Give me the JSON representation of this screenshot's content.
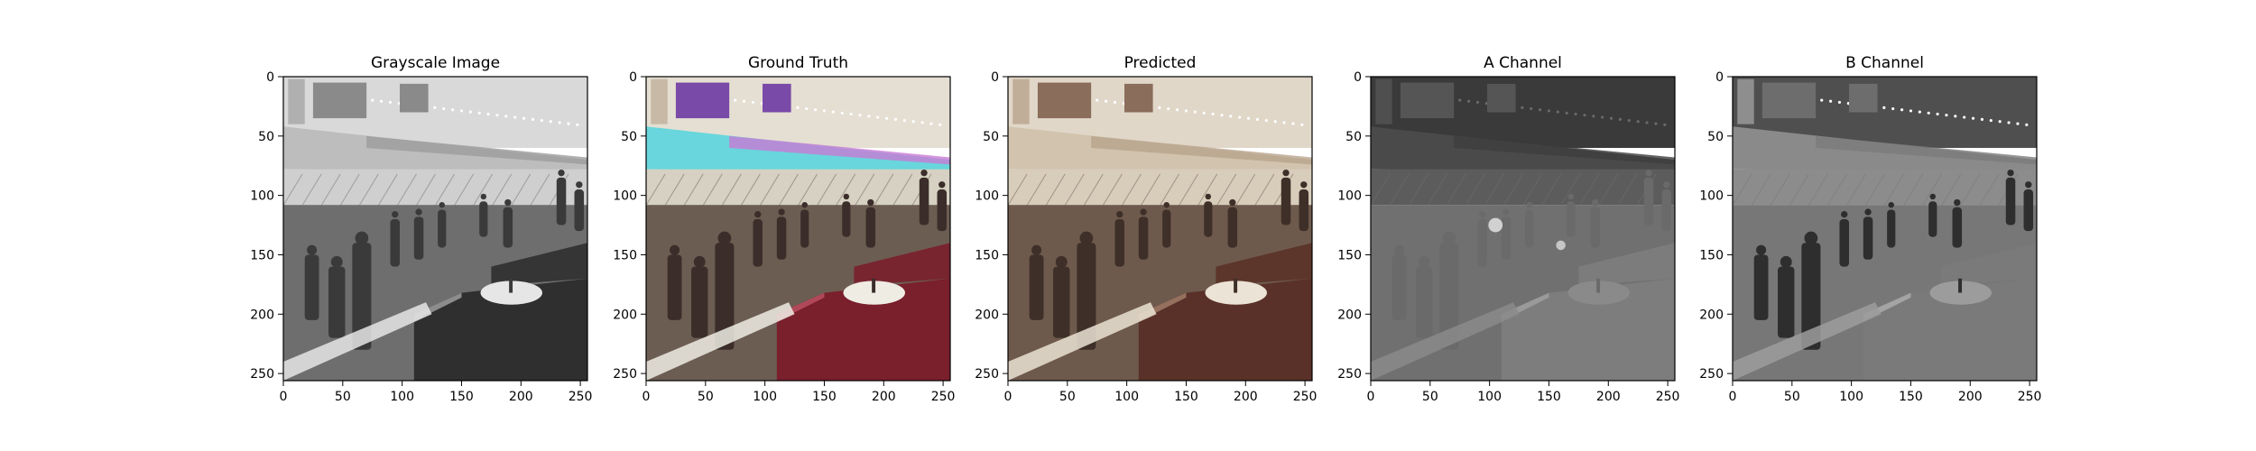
{
  "figure": {
    "panels": [
      {
        "id": "gray",
        "title": "Grayscale Image",
        "variant": "gray"
      },
      {
        "id": "gt",
        "title": "Ground Truth",
        "variant": "color"
      },
      {
        "id": "pred",
        "title": "Predicted",
        "variant": "warm"
      },
      {
        "id": "a",
        "title": "A Channel",
        "variant": "a-channel"
      },
      {
        "id": "b",
        "title": "B Channel",
        "variant": "b-channel"
      }
    ],
    "x_ticks": [
      "0",
      "50",
      "100",
      "150",
      "200",
      "250"
    ],
    "y_ticks": [
      "0",
      "50",
      "100",
      "150",
      "200",
      "250"
    ],
    "x_tick_values": [
      0,
      50,
      100,
      150,
      200,
      250
    ],
    "y_tick_values": [
      0,
      50,
      100,
      150,
      200,
      250
    ],
    "axis_range": [
      0,
      256
    ]
  },
  "colors": {
    "frame": "#000000",
    "gt_pink_strip": "#c87ad6",
    "gt_cyan_strip": "#68d6dc",
    "gt_red_booth": "#7a1f2c",
    "pred_brown_booth": "#5a3128"
  }
}
